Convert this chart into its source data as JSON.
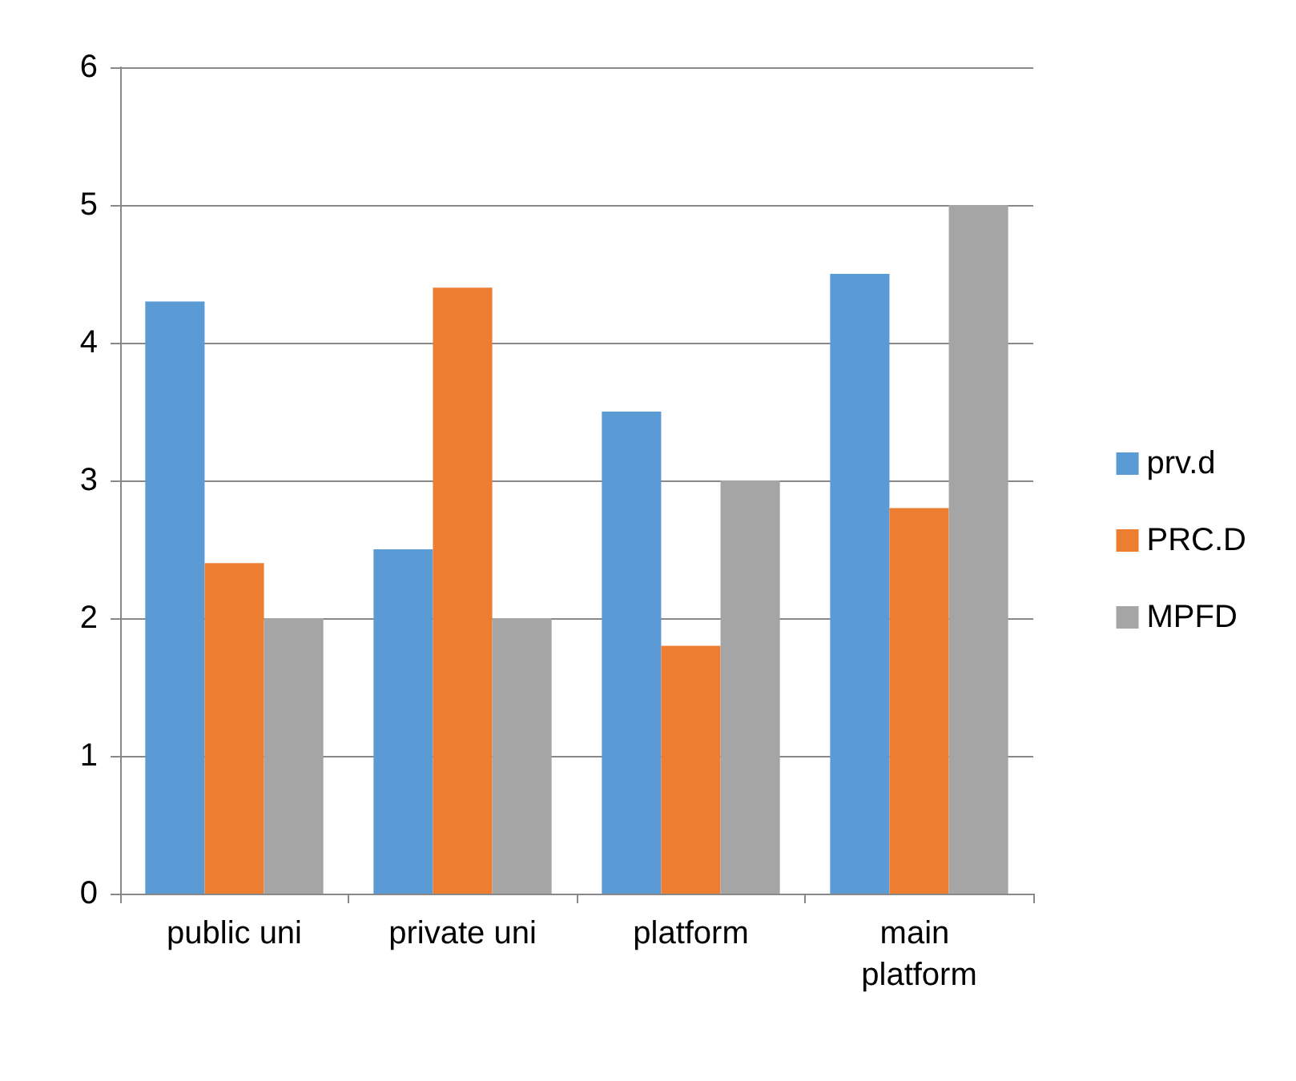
{
  "chart_data": {
    "type": "bar",
    "categories": [
      "public uni",
      "private uni",
      "platform",
      "main platform"
    ],
    "series": [
      {
        "name": "prv.d",
        "color": "#5b9bd5",
        "values": [
          4.3,
          2.5,
          3.5,
          4.5
        ]
      },
      {
        "name": "PRC.D",
        "color": "#ed7d31",
        "values": [
          2.4,
          4.4,
          1.8,
          2.8
        ]
      },
      {
        "name": "MPFD",
        "color": "#a5a5a5",
        "values": [
          2.0,
          2.0,
          3.0,
          5.0
        ]
      }
    ],
    "ylim": [
      0,
      6
    ],
    "yticks": [
      0,
      1,
      2,
      3,
      4,
      5,
      6
    ],
    "grid": "y",
    "legend": "right"
  }
}
